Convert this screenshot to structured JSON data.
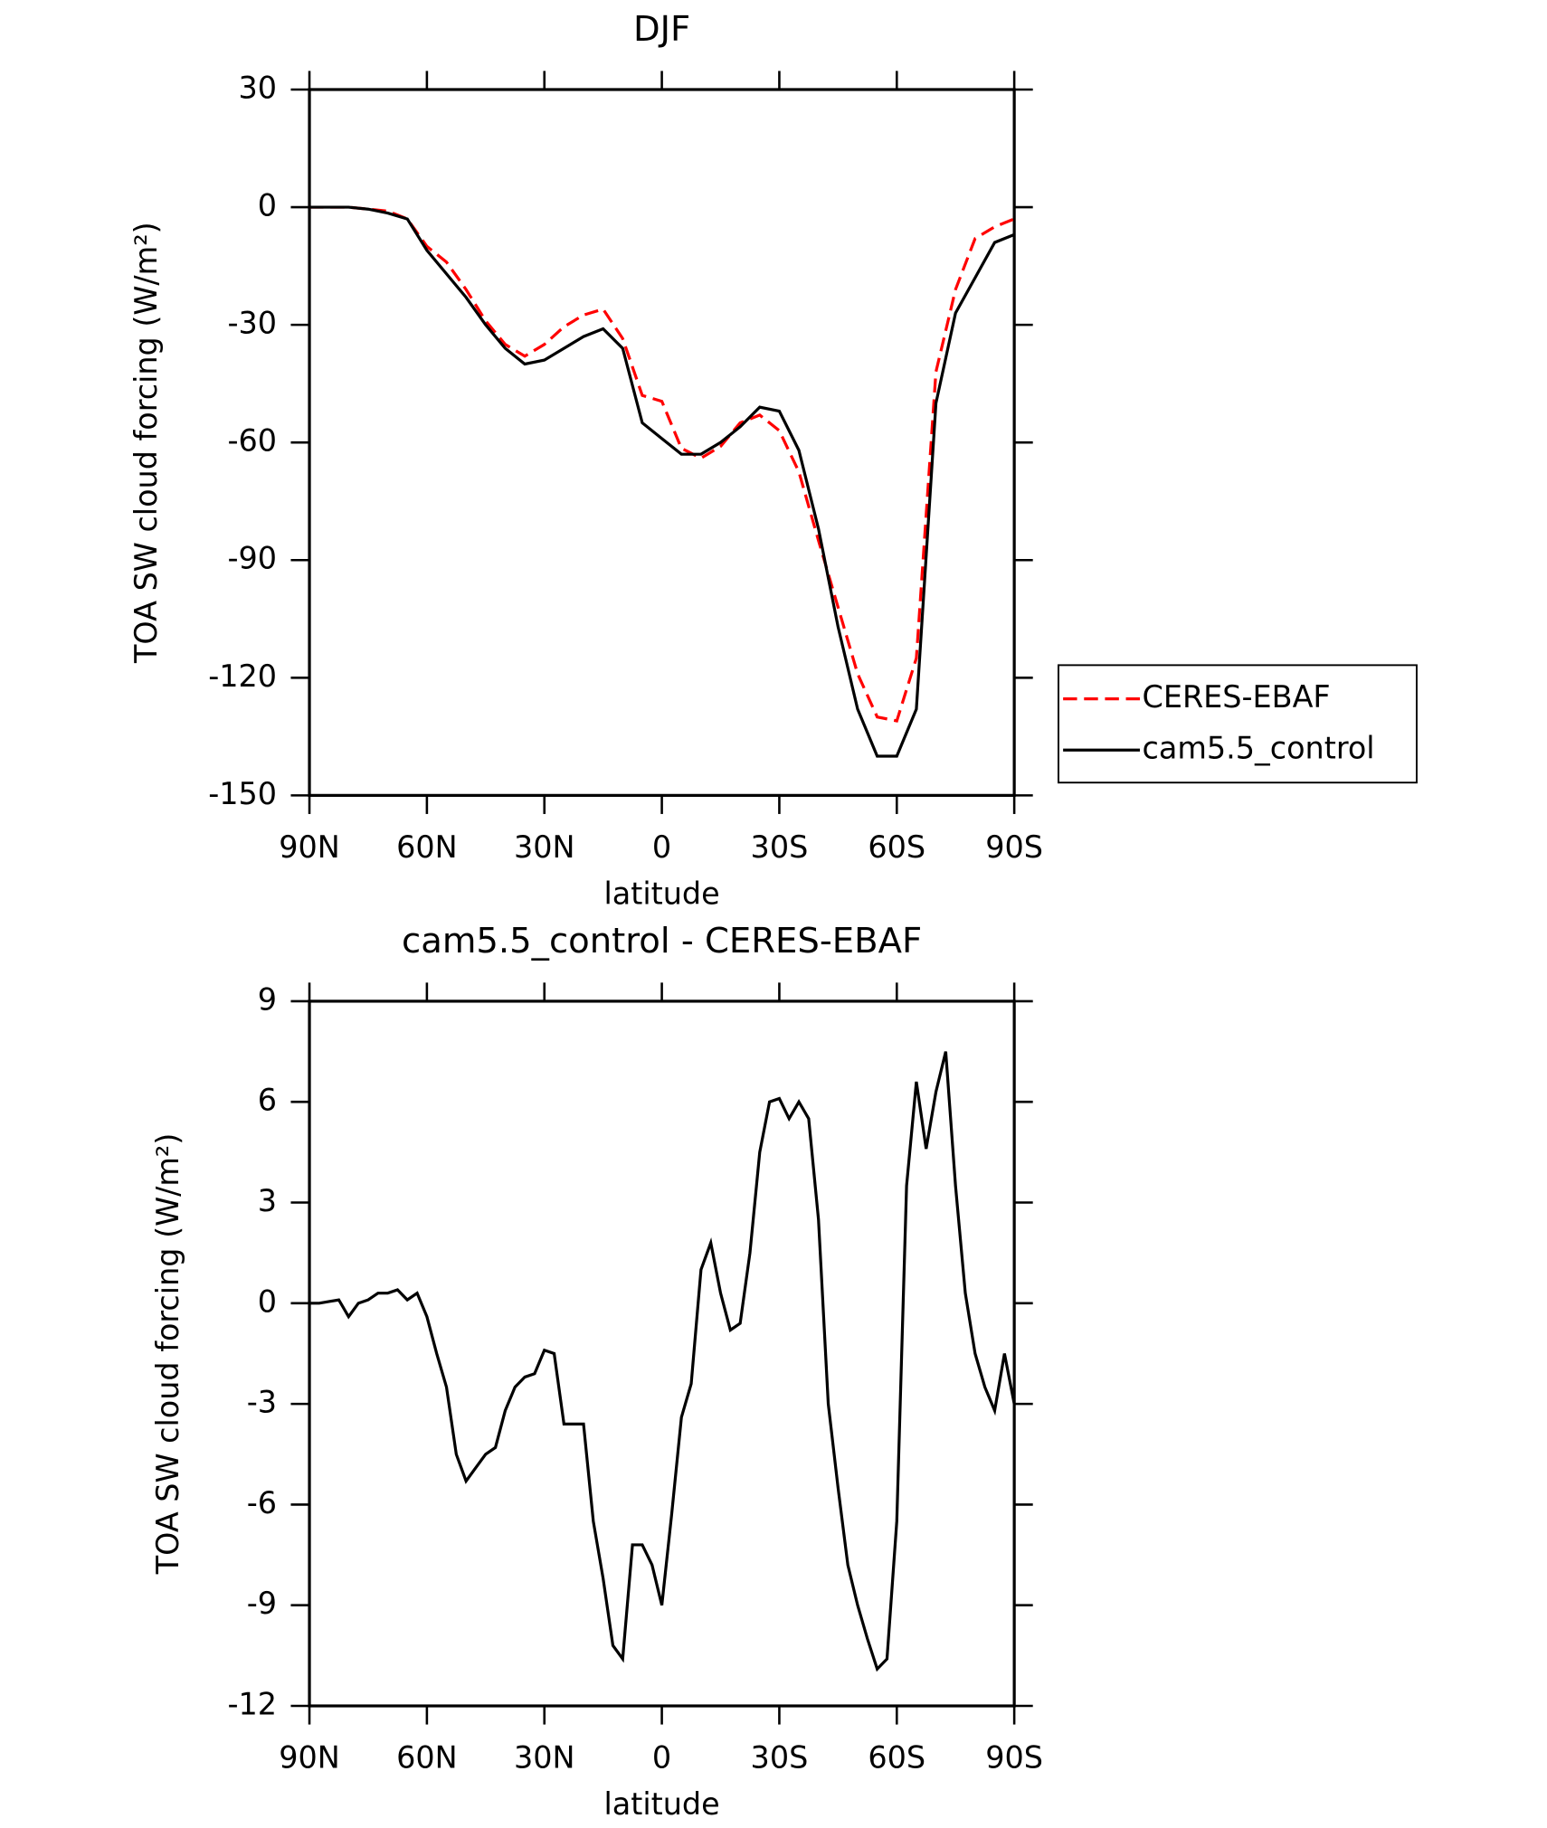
{
  "chart_data": [
    {
      "type": "line",
      "title": "DJF",
      "xlabel": "latitude",
      "ylabel": "TOA SW cloud forcing (W/m²)",
      "x": [
        90,
        85,
        80,
        75,
        70,
        65,
        60,
        55,
        50,
        45,
        40,
        35,
        30,
        25,
        20,
        15,
        10,
        5,
        0,
        -5,
        -10,
        -15,
        -20,
        -25,
        -30,
        -35,
        -40,
        -45,
        -50,
        -55,
        -60,
        -65,
        -70,
        -75,
        -80,
        -85,
        -90
      ],
      "xlim": [
        90,
        -90
      ],
      "xticks": [
        {
          "value": 90,
          "label": "90N"
        },
        {
          "value": 60,
          "label": "60N"
        },
        {
          "value": 30,
          "label": "30N"
        },
        0,
        {
          "value": -30,
          "label": "30S"
        },
        {
          "value": -60,
          "label": "60S"
        },
        {
          "value": -90,
          "label": "90S"
        }
      ],
      "ylim": [
        -150,
        30
      ],
      "yticks": [
        30,
        0,
        -30,
        -60,
        -90,
        -120,
        -150
      ],
      "series": [
        {
          "name": "CERES-EBAF",
          "color": "#ff0000",
          "dashed": true,
          "values": [
            0,
            0,
            0,
            -0.5,
            -1,
            -3,
            -10,
            -14,
            -21,
            -29,
            -35,
            -38,
            -35,
            -30.5,
            -27.5,
            -26,
            -33.5,
            -48,
            -49.5,
            -61.5,
            -64,
            -61,
            -55,
            -53,
            -57,
            -67.5,
            -85,
            -102,
            -119,
            -130,
            -131,
            -115,
            -42,
            -21,
            -8,
            -5,
            -3
          ]
        },
        {
          "name": "cam5.5_control",
          "color": "#000000",
          "dashed": false,
          "values": [
            0,
            0,
            0,
            -0.5,
            -1.5,
            -3,
            -11,
            -17,
            -23,
            -30,
            -36,
            -40,
            -39,
            -36,
            -33,
            -31,
            -36,
            -55,
            -59,
            -63,
            -63,
            -60,
            -56,
            -51,
            -52,
            -62,
            -82,
            -107,
            -128,
            -140,
            -140,
            -128,
            -50,
            -27,
            -18,
            -9,
            -7
          ]
        }
      ]
    },
    {
      "type": "line",
      "title": "cam5.5_control - CERES-EBAF",
      "xlabel": "latitude",
      "ylabel": "TOA SW cloud forcing (W/m²)",
      "x": [
        90,
        87.5,
        85,
        82.5,
        80,
        77.5,
        75,
        72.5,
        70,
        67.5,
        65,
        62.5,
        60,
        57.5,
        55,
        52.5,
        50,
        47.5,
        45,
        42.5,
        40,
        37.5,
        35,
        32.5,
        30,
        27.5,
        25,
        22.5,
        20,
        17.5,
        15,
        12.5,
        10,
        7.5,
        5,
        2.5,
        0,
        -2.5,
        -5,
        -7.5,
        -10,
        -12.5,
        -15,
        -17.5,
        -20,
        -22.5,
        -25,
        -27.5,
        -30,
        -32.5,
        -35,
        -37.5,
        -40,
        -42.5,
        -45,
        -47.5,
        -50,
        -52.5,
        -55,
        -57.5,
        -60,
        -62.5,
        -65,
        -67.5,
        -70,
        -72.5,
        -75,
        -77.5,
        -80,
        -82.5,
        -85,
        -87.5,
        -90
      ],
      "xlim": [
        90,
        -90
      ],
      "xticks": [
        {
          "value": 90,
          "label": "90N"
        },
        {
          "value": 60,
          "label": "60N"
        },
        {
          "value": 30,
          "label": "30N"
        },
        0,
        {
          "value": -30,
          "label": "30S"
        },
        {
          "value": -60,
          "label": "60S"
        },
        {
          "value": -90,
          "label": "90S"
        }
      ],
      "ylim": [
        -12,
        9
      ],
      "yticks": [
        9,
        6,
        3,
        0,
        -3,
        -6,
        -9,
        -12
      ],
      "series": [
        {
          "color": "#000000",
          "dashed": false,
          "values": [
            0,
            0,
            0.05,
            0.1,
            -0.4,
            0,
            0.1,
            0.3,
            0.3,
            0.4,
            0.1,
            0.3,
            -0.4,
            -1.5,
            -2.5,
            -4.5,
            -5.3,
            -4.9,
            -4.5,
            -4.3,
            -3.2,
            -2.5,
            -2.2,
            -2.1,
            -1.4,
            -1.5,
            -3.6,
            -3.6,
            -3.6,
            -6.5,
            -8.2,
            -10.2,
            -10.6,
            -7.2,
            -7.2,
            -7.8,
            -9.0,
            -6.3,
            -3.4,
            -2.4,
            1.0,
            1.8,
            0.3,
            -0.8,
            -0.6,
            1.5,
            4.5,
            6.0,
            6.1,
            5.5,
            6.0,
            5.5,
            2.5,
            -3.0,
            -5.5,
            -7.8,
            -9.0,
            -10.0,
            -10.9,
            -10.6,
            -6.5,
            3.5,
            6.6,
            4.6,
            6.3,
            7.5,
            3.5,
            0.3,
            -1.5,
            -2.5,
            -3.2,
            -1.5,
            -3.0
          ]
        }
      ]
    }
  ]
}
